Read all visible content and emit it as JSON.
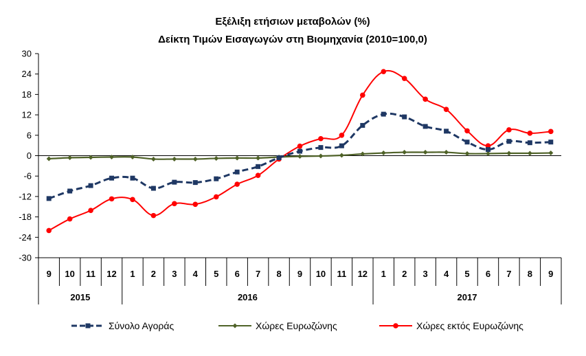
{
  "chart_data": {
    "type": "line",
    "title": "Εξέλιξη ετήσιων μεταβολών (%)",
    "subtitle": "Δείκτη Τιμών Εισαγωγών στη Βιομηχανία (2010=100,0)",
    "x_month_labels": [
      "9",
      "10",
      "11",
      "12",
      "1",
      "2",
      "3",
      "4",
      "5",
      "6",
      "7",
      "8",
      "9",
      "10",
      "11",
      "12",
      "1",
      "2",
      "3",
      "4",
      "5",
      "6",
      "7",
      "8",
      "9"
    ],
    "year_groups": [
      {
        "label": "2015",
        "count": 4
      },
      {
        "label": "2016",
        "count": 12
      },
      {
        "label": "2017",
        "count": 9
      }
    ],
    "ylim": [
      -30,
      30
    ],
    "yticks": [
      30,
      24,
      18,
      12,
      6,
      0,
      -6,
      -12,
      -18,
      -24,
      -30
    ],
    "grid": false,
    "legend_position": "bottom",
    "series": [
      {
        "name": "Σύνολο Αγοράς",
        "color": "#1F3864",
        "style": "dashed-square",
        "values": [
          -12.6,
          -10.4,
          -8.8,
          -6.6,
          -6.6,
          -9.6,
          -7.8,
          -7.9,
          -6.8,
          -4.8,
          -3.2,
          -0.6,
          1.3,
          2.4,
          2.9,
          8.9,
          12.2,
          11.4,
          8.6,
          7.2,
          4.0,
          1.8,
          4.2,
          3.8,
          4.0
        ]
      },
      {
        "name": "Χώρες Ευρωζώνης",
        "color": "#4F6228",
        "style": "solid-diamond",
        "values": [
          -0.9,
          -0.6,
          -0.5,
          -0.4,
          -0.4,
          -1.0,
          -1.0,
          -1.0,
          -0.8,
          -0.7,
          -0.7,
          -0.4,
          -0.2,
          -0.1,
          0.1,
          0.5,
          0.8,
          1.0,
          1.0,
          1.0,
          0.6,
          0.6,
          0.7,
          0.7,
          0.8
        ]
      },
      {
        "name": "Χώρες εκτός Ευρωζώνης",
        "color": "#FF0000",
        "style": "solid-circle",
        "values": [
          -22.0,
          -18.6,
          -16.1,
          -12.7,
          -12.9,
          -17.6,
          -14.1,
          -14.3,
          -12.1,
          -8.4,
          -5.8,
          -1.0,
          2.8,
          5.0,
          6.0,
          17.8,
          24.7,
          22.7,
          16.6,
          13.6,
          7.3,
          2.9,
          7.6,
          6.6,
          7.1
        ]
      }
    ]
  }
}
